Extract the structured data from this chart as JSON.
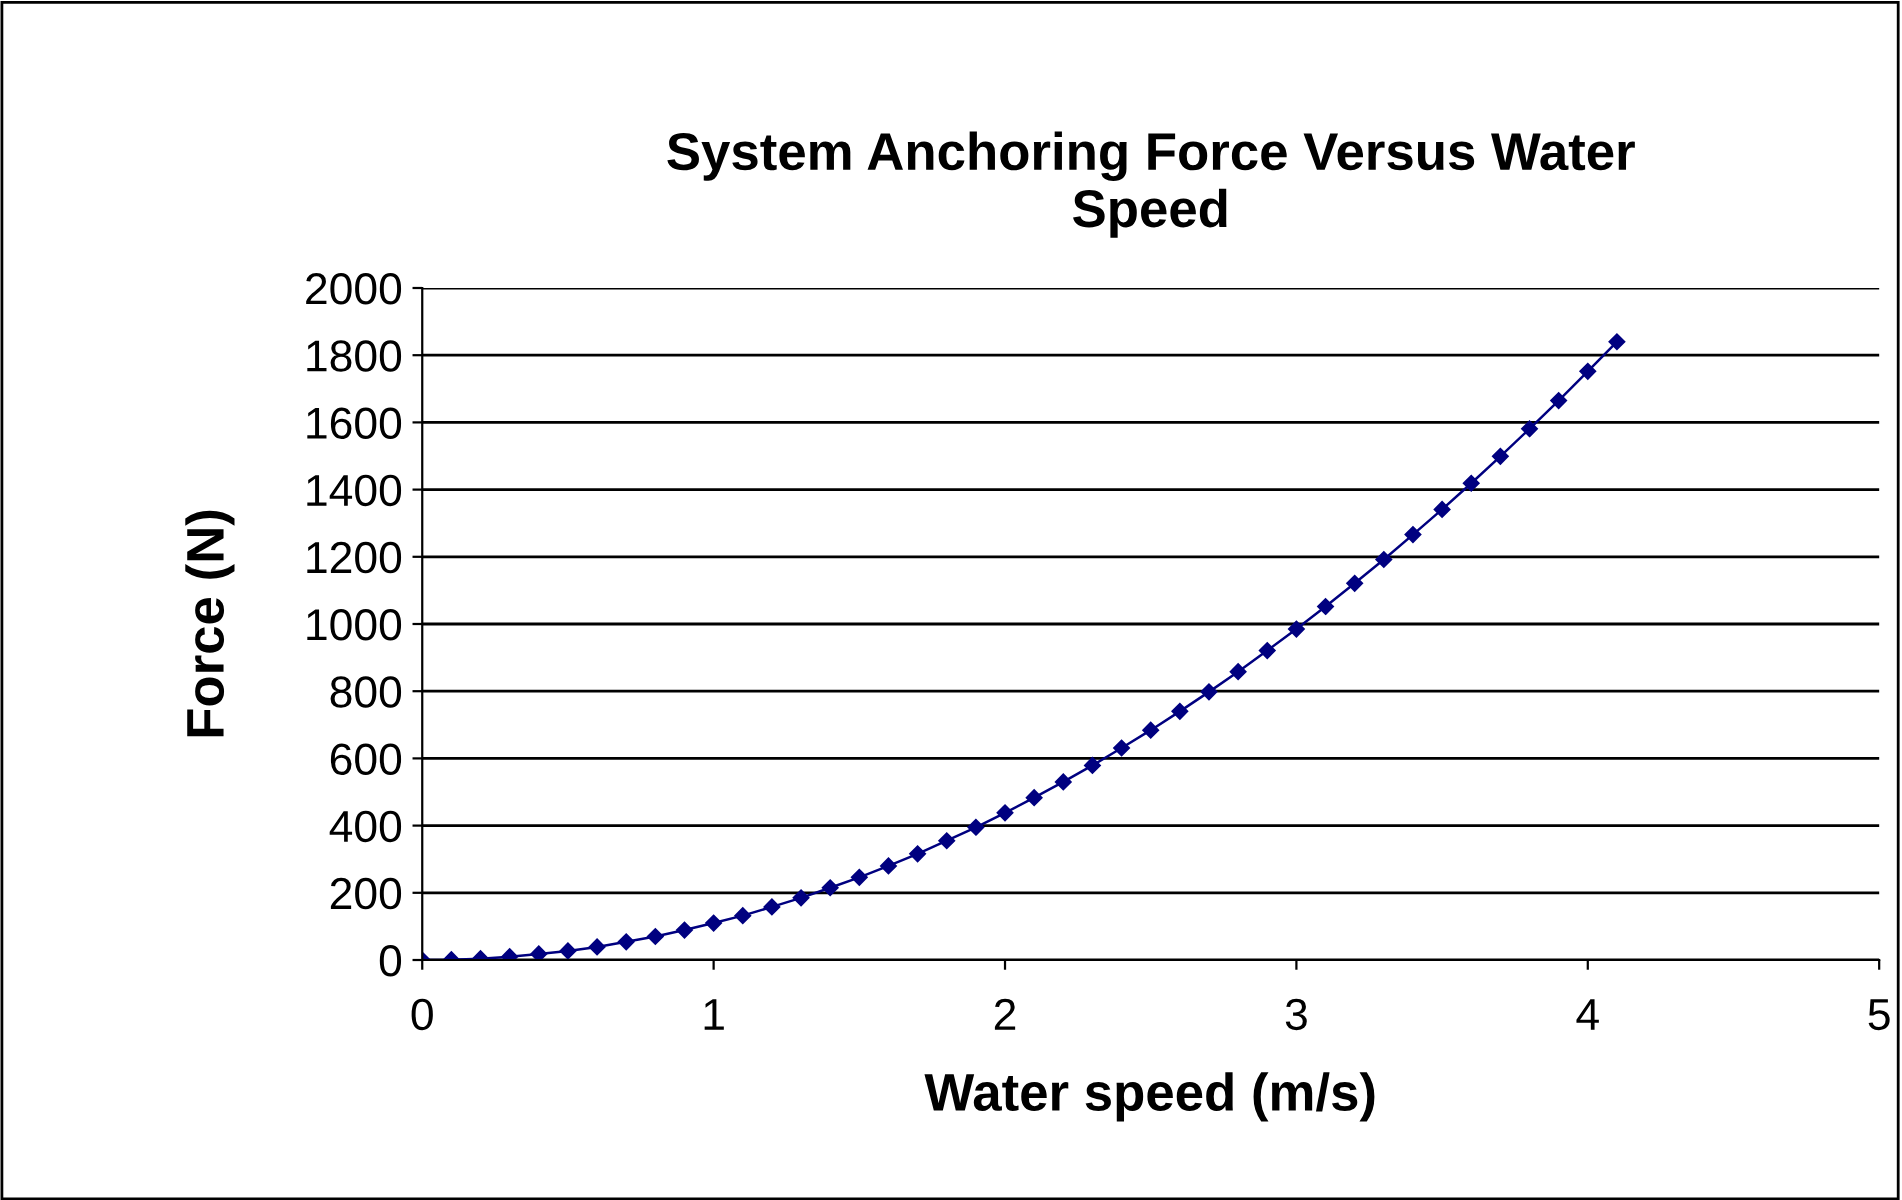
{
  "chart_data": {
    "type": "line",
    "title": "System Anchoring Force Versus Water\nSpeed",
    "xlabel": "Water speed (m/s)",
    "ylabel": "Force (N)",
    "x": [
      0,
      0.1,
      0.2,
      0.3,
      0.4,
      0.5,
      0.6,
      0.7,
      0.8,
      0.9,
      1,
      1.1,
      1.2,
      1.3,
      1.4,
      1.5,
      1.6,
      1.7,
      1.8,
      1.9,
      2,
      2.1,
      2.2,
      2.3,
      2.4,
      2.5,
      2.6,
      2.7,
      2.8,
      2.9,
      3,
      3.1,
      3.2,
      3.3,
      3.4,
      3.5,
      3.6,
      3.7,
      3.8,
      3.9,
      4,
      4.1
    ],
    "series": [
      {
        "color": "#000080",
        "values": [
          0,
          1,
          4,
          10,
          18,
          27,
          39,
          54,
          70,
          89,
          110,
          132,
          158,
          185,
          215,
          246,
          280,
          316,
          355,
          395,
          438,
          483,
          530,
          579,
          631,
          684,
          740,
          798,
          858,
          921,
          985,
          1052,
          1121,
          1192,
          1266,
          1341,
          1419,
          1499,
          1581,
          1665,
          1752,
          1840
        ]
      }
    ],
    "xlim": [
      0,
      5
    ],
    "xticks": [
      0,
      1,
      2,
      3,
      4,
      5
    ],
    "ylim": [
      0,
      2000
    ],
    "yticks": [
      0,
      200,
      400,
      600,
      800,
      1000,
      1200,
      1400,
      1600,
      1800,
      2000
    ],
    "grid": "y",
    "legend": false,
    "marker": "diamond",
    "line_style": "solid"
  }
}
